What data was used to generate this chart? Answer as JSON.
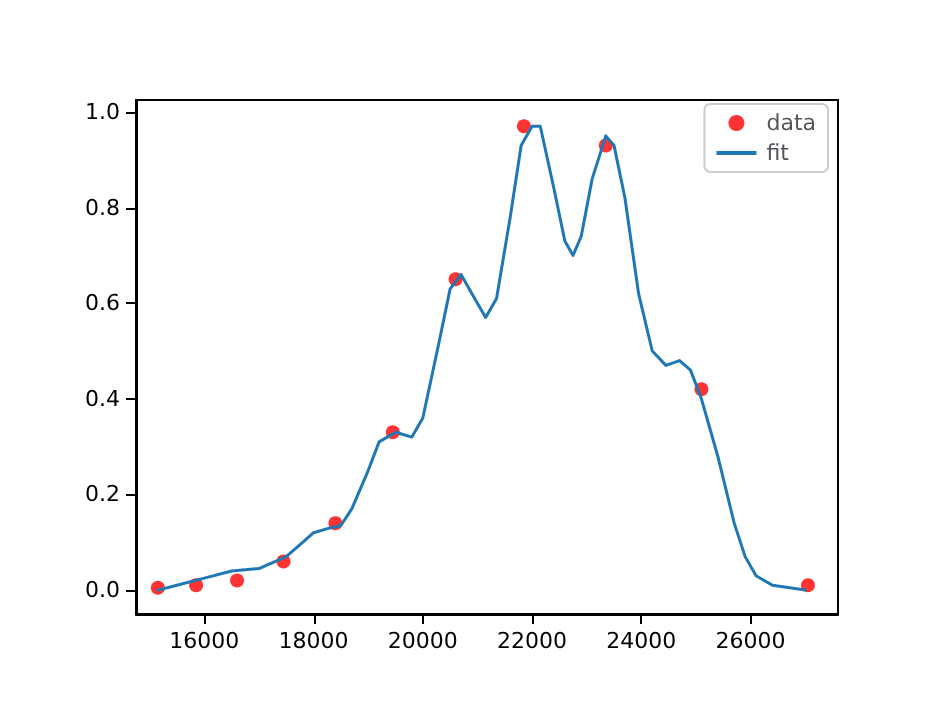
{
  "chart_data": {
    "type": "scatter",
    "xlim": [
      14750,
      27600
    ],
    "xticks": [
      16000,
      18000,
      20000,
      22000,
      24000,
      26000
    ],
    "ylim": [
      -0.05,
      1.025
    ],
    "yticks": [
      {
        "value": 0,
        "label": "0.0"
      },
      {
        "value": 0.2,
        "label": "0.2"
      },
      {
        "value": 0.4,
        "label": "0.4"
      },
      {
        "value": 0.6,
        "label": "0.6"
      },
      {
        "value": 0.8,
        "label": "0.8"
      },
      {
        "value": 1,
        "label": "1.0"
      }
    ],
    "grid": false,
    "legend": "top right",
    "series": [
      {
        "name": "data",
        "color": "#ff0000",
        "marker": "circle",
        "x": [
          15150,
          15850,
          16600,
          17450,
          18400,
          19450,
          20600,
          21850,
          23350,
          25100,
          27050
        ],
        "values": [
          0.005,
          0.01,
          0.02,
          0.06,
          0.14,
          0.33,
          0.65,
          0.97,
          0.93,
          0.42,
          0.01
        ]
      },
      {
        "name": "fit",
        "type": "line",
        "color": "#1f77b4",
        "marker": "none",
        "line_style": "solid",
        "x": [
          15150,
          15500,
          16000,
          16500,
          17000,
          17500,
          17800,
          18000,
          18300,
          18500,
          18700,
          19000,
          19200,
          19500,
          19800,
          20000,
          20300,
          20500,
          20700,
          20900,
          21150,
          21350,
          21600,
          21800,
          22000,
          22150,
          22400,
          22600,
          22750,
          22900,
          23100,
          23350,
          23500,
          23700,
          23950,
          24200,
          24450,
          24700,
          24900,
          25100,
          25400,
          25700,
          25900,
          26100,
          26400,
          27000
        ],
        "values": [
          0.0,
          0.01,
          0.025,
          0.04,
          0.045,
          0.07,
          0.1,
          0.12,
          0.13,
          0.135,
          0.17,
          0.25,
          0.31,
          0.33,
          0.32,
          0.36,
          0.52,
          0.63,
          0.66,
          0.62,
          0.57,
          0.61,
          0.78,
          0.93,
          0.97,
          0.97,
          0.84,
          0.73,
          0.7,
          0.74,
          0.86,
          0.95,
          0.93,
          0.82,
          0.62,
          0.5,
          0.47,
          0.48,
          0.46,
          0.4,
          0.28,
          0.14,
          0.07,
          0.03,
          0.01,
          0.0
        ]
      }
    ]
  }
}
